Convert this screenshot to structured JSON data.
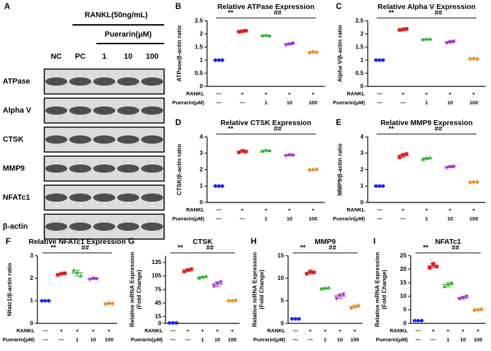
{
  "blot": {
    "panel": "A",
    "treatment": "RANKL(50ng/mL)",
    "drug": "Puerarin(μM)",
    "lanes": [
      "NC",
      "PC",
      "1",
      "10",
      "100"
    ],
    "proteins": [
      "ATPase",
      "Alpha V",
      "CTSK",
      "MMP9",
      "NFATc1",
      "β-actin"
    ]
  },
  "chart_data": [
    {
      "type": "dot",
      "panel": "B",
      "title": "Relative ATPase Expression",
      "ylabel": "ATPase/β-actin ratio",
      "ylim": [
        0,
        2.5
      ],
      "yticks": [
        0,
        0.5,
        1.0,
        1.5,
        2.0,
        2.5
      ],
      "rows": [
        {
          "label": "RANKL",
          "values": [
            "—",
            "+",
            "+",
            "+",
            "+"
          ]
        },
        {
          "label": "Puerarin(μM)",
          "values": [
            "—",
            "—",
            "1",
            "10",
            "100"
          ]
        }
      ],
      "groups": [
        {
          "color": "#1f1fff",
          "marker": "circle",
          "values": [
            1,
            1,
            1
          ]
        },
        {
          "color": "#e81c1c",
          "marker": "square",
          "values": [
            2.08,
            2.1,
            2.12
          ]
        },
        {
          "color": "#2bb52b",
          "marker": "triangle",
          "values": [
            1.93,
            1.95,
            1.92
          ]
        },
        {
          "color": "#a52bd6",
          "marker": "triangle-down",
          "values": [
            1.58,
            1.62,
            1.65
          ]
        },
        {
          "color": "#f08a1c",
          "marker": "diamond",
          "values": [
            1.28,
            1.32,
            1.3
          ]
        }
      ],
      "annotations": [
        "**",
        "##"
      ]
    },
    {
      "type": "dot",
      "panel": "C",
      "title": "Relative Alpha V Expression",
      "ylabel": "Alpha V/β-actin ratio",
      "ylim": [
        0,
        2.5
      ],
      "yticks": [
        0,
        0.5,
        1.0,
        1.5,
        2.0,
        2.5
      ],
      "rows": [
        {
          "label": "RANKL",
          "values": [
            "—",
            "+",
            "+",
            "+",
            "+"
          ]
        },
        {
          "label": "Puerarin(μM)",
          "values": [
            "—",
            "—",
            "1",
            "10",
            "100"
          ]
        }
      ],
      "groups": [
        {
          "color": "#1f1fff",
          "marker": "circle",
          "values": [
            1,
            1,
            1
          ]
        },
        {
          "color": "#e81c1c",
          "marker": "square",
          "values": [
            2.15,
            2.17,
            2.19
          ]
        },
        {
          "color": "#2bb52b",
          "marker": "triangle",
          "values": [
            1.78,
            1.8,
            1.8
          ]
        },
        {
          "color": "#a52bd6",
          "marker": "triangle-down",
          "values": [
            1.65,
            1.7,
            1.72
          ]
        },
        {
          "color": "#f08a1c",
          "marker": "diamond",
          "values": [
            1.05,
            1.06,
            1.04
          ]
        }
      ],
      "annotations": [
        "**",
        "##"
      ]
    },
    {
      "type": "dot",
      "panel": "D",
      "title": "Relative CTSK Expression",
      "ylabel": "CTSK/β-actin ratio",
      "ylim": [
        0,
        4
      ],
      "yticks": [
        0,
        1,
        2,
        3,
        4
      ],
      "rows": [
        {
          "label": "RANKL",
          "values": [
            "—",
            "+",
            "+",
            "+",
            "+"
          ]
        },
        {
          "label": "Puerarin(μM)",
          "values": [
            "—",
            "—",
            "1",
            "10",
            "100"
          ]
        }
      ],
      "groups": [
        {
          "color": "#1f1fff",
          "marker": "circle",
          "values": [
            1,
            1,
            1
          ]
        },
        {
          "color": "#e81c1c",
          "marker": "square",
          "values": [
            3.05,
            3.15,
            3.1
          ]
        },
        {
          "color": "#2bb52b",
          "marker": "triangle",
          "values": [
            3.12,
            3.18,
            3.15
          ]
        },
        {
          "color": "#a52bd6",
          "marker": "triangle-down",
          "values": [
            2.85,
            2.9,
            2.88
          ]
        },
        {
          "color": "#f08a1c",
          "marker": "diamond",
          "values": [
            1.98,
            2.0,
            2.02
          ]
        }
      ],
      "annotations": [
        "**",
        "##"
      ]
    },
    {
      "type": "dot",
      "panel": "E",
      "title": "Relative MMP9 Expression",
      "ylabel": "MMP9/β-actin ratio",
      "ylim": [
        0,
        4
      ],
      "yticks": [
        0,
        1,
        2,
        3,
        4
      ],
      "rows": [
        {
          "label": "RANKL",
          "values": [
            "—",
            "+",
            "+",
            "+",
            "+"
          ]
        },
        {
          "label": "Puerarin(μM)",
          "values": [
            "—",
            "—",
            "1",
            "10",
            "100"
          ]
        }
      ],
      "groups": [
        {
          "color": "#1f1fff",
          "marker": "circle",
          "values": [
            1,
            1,
            1
          ]
        },
        {
          "color": "#e81c1c",
          "marker": "square",
          "values": [
            2.75,
            2.9,
            2.95
          ]
        },
        {
          "color": "#2bb52b",
          "marker": "triangle",
          "values": [
            2.62,
            2.7,
            2.72
          ]
        },
        {
          "color": "#a52bd6",
          "marker": "triangle-down",
          "values": [
            2.12,
            2.18,
            2.2
          ]
        },
        {
          "color": "#f08a1c",
          "marker": "diamond",
          "values": [
            1.22,
            1.25,
            1.24
          ]
        }
      ],
      "annotations": [
        "**",
        "##"
      ]
    },
    {
      "type": "dot",
      "panel": "F",
      "title": "Relative NFATc1 Expression",
      "ylabel": "Nfatc1/β-actin ratio",
      "ylim": [
        0,
        3
      ],
      "yticks": [
        0,
        1,
        2,
        3
      ],
      "rows": [
        {
          "label": "RANKL",
          "values": [
            "—",
            "+",
            "+",
            "+",
            "+"
          ]
        },
        {
          "label": "Puerarin(μM)",
          "values": [
            "—",
            "—",
            "1",
            "10",
            "100"
          ]
        }
      ],
      "groups": [
        {
          "color": "#1f1fff",
          "marker": "circle",
          "values": [
            1,
            1,
            1
          ]
        },
        {
          "color": "#e81c1c",
          "marker": "square",
          "values": [
            2.15,
            2.2,
            2.22
          ]
        },
        {
          "color": "#2bb52b",
          "marker": "triangle",
          "values": [
            2.35,
            2.25,
            2.1
          ]
        },
        {
          "color": "#a52bd6",
          "marker": "triangle-down",
          "values": [
            1.95,
            2.0,
            1.98
          ]
        },
        {
          "color": "#f08a1c",
          "marker": "diamond",
          "values": [
            0.85,
            0.9,
            0.88
          ]
        }
      ],
      "annotations": [
        "**",
        "##"
      ]
    },
    {
      "type": "dot",
      "panel": "G",
      "title": "CTSK",
      "ylabel": [
        "Relative mRNA Expression",
        "(Fold Change)"
      ],
      "ylim": [
        0,
        150
      ],
      "yticks": [
        0,
        15,
        45,
        75,
        105,
        135
      ],
      "rows": [
        {
          "label": "RANKL",
          "values": [
            "—",
            "+",
            "+",
            "+",
            "+"
          ]
        },
        {
          "label": "Puerarin(μM)",
          "values": [
            "—",
            "—",
            "1",
            "10",
            "100"
          ]
        }
      ],
      "groups": [
        {
          "color": "#1f1fff",
          "marker": "circle",
          "values": [
            1,
            1,
            1
          ]
        },
        {
          "color": "#e81c1c",
          "marker": "square",
          "values": [
            115,
            118,
            120
          ]
        },
        {
          "color": "#2bb52b",
          "marker": "triangle",
          "values": [
            100,
            103,
            104
          ]
        },
        {
          "color": "#a52bd6",
          "marker": "triangle-down",
          "values": [
            82,
            88,
            92
          ]
        },
        {
          "color": "#f08a1c",
          "marker": "diamond",
          "values": [
            50,
            50,
            51
          ]
        }
      ],
      "annotations": [
        "**",
        "##"
      ]
    },
    {
      "type": "dot",
      "panel": "H",
      "title": "MMP9",
      "ylabel": [
        "Relative mRNA Expression",
        "(Fold Change)"
      ],
      "ylim": [
        0,
        15
      ],
      "yticks": [
        0,
        5,
        10,
        15
      ],
      "rows": [
        {
          "label": "RANKL",
          "values": [
            "—",
            "+",
            "+",
            "+",
            "+"
          ]
        },
        {
          "label": "Puerarin(μM)",
          "values": [
            "—",
            "—",
            "1",
            "10",
            "100"
          ]
        }
      ],
      "groups": [
        {
          "color": "#1f1fff",
          "marker": "circle",
          "values": [
            1,
            1,
            1
          ]
        },
        {
          "color": "#e81c1c",
          "marker": "square",
          "values": [
            11,
            11.5,
            11.3
          ]
        },
        {
          "color": "#2bb52b",
          "marker": "triangle",
          "values": [
            7.6,
            7.8,
            7.9
          ]
        },
        {
          "color": "#a52bd6",
          "marker": "triangle-down",
          "values": [
            5.5,
            6.2,
            6.5
          ]
        },
        {
          "color": "#f08a1c",
          "marker": "diamond",
          "values": [
            3.4,
            3.7,
            4.0
          ]
        }
      ],
      "annotations": [
        "**",
        "##"
      ]
    },
    {
      "type": "dot",
      "panel": "I",
      "title": "NFATc1",
      "ylabel": [
        "Relative mRNA Expression",
        "(Fold Change)"
      ],
      "ylim": [
        0,
        25
      ],
      "yticks": [
        0,
        5,
        10,
        15,
        20,
        25
      ],
      "rows": [
        {
          "label": "RANKL",
          "values": [
            "—",
            "+",
            "+",
            "+",
            "+"
          ]
        },
        {
          "label": "Puerarin(μM)",
          "values": [
            "—",
            "—",
            "1",
            "10",
            "100"
          ]
        }
      ],
      "groups": [
        {
          "color": "#1f1fff",
          "marker": "circle",
          "values": [
            1,
            1,
            1
          ]
        },
        {
          "color": "#e81c1c",
          "marker": "square",
          "values": [
            20.5,
            22,
            21
          ]
        },
        {
          "color": "#2bb52b",
          "marker": "triangle",
          "values": [
            13.5,
            14.5,
            15
          ]
        },
        {
          "color": "#a52bd6",
          "marker": "triangle-down",
          "values": [
            9,
            9.5,
            10
          ]
        },
        {
          "color": "#f08a1c",
          "marker": "diamond",
          "values": [
            4.8,
            5,
            5.2
          ]
        }
      ],
      "annotations": [
        "**",
        "##"
      ]
    }
  ]
}
